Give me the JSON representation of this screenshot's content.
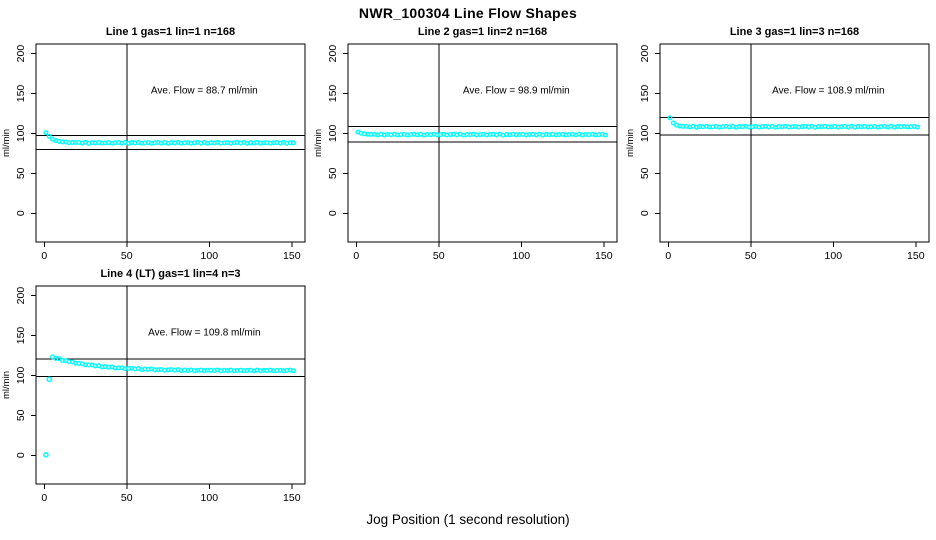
{
  "page_title": "NWR_100304  Line Flow Shapes",
  "xlabel": "Jog Position (1 second resolution)",
  "colors": {
    "points": "#00FFFF",
    "axis": "#000000",
    "background": "#FFFFFF"
  },
  "chart_data": {
    "type": "scatter",
    "title": "NWR_100304  Line Flow Shapes",
    "xlabel": "Jog Position (1 second resolution)",
    "ylabel": "ml/min",
    "grid": "off",
    "layout": "2 rows x 3 cols, positions 1-4 used",
    "shared_axes": {
      "xlim": [
        -5,
        158
      ],
      "ylim": [
        -36,
        212
      ],
      "xticks": [
        0,
        50,
        100,
        150
      ],
      "yticks": [
        0,
        50,
        100,
        150,
        200
      ],
      "vline_x": 50,
      "marker": "open-circle"
    },
    "annotation_pos": [
      97,
      150
    ],
    "plots": [
      {
        "title": "Line 1 gas=1 lin=1 n=168",
        "annotation": "Ave. Flow =  88.7  ml/min",
        "ave_flow_ml_min": 88.7,
        "ref_lines": [
          97.6,
          79.8
        ],
        "x_start": 1,
        "x_step": 2,
        "y": [
          100.8,
          96.3,
          92.7,
          90.9,
          90.1,
          89.2,
          89.3,
          88.3,
          88.6,
          88.6,
          88.6,
          87.9,
          88.8,
          87.6,
          88.4,
          88.1,
          88.7,
          87.8,
          88.2,
          88.5,
          87.7,
          88.3,
          88.6,
          87.9,
          88.8,
          87.6,
          88.4,
          88.1,
          88.7,
          87.8,
          88.2,
          88.5,
          87.7,
          88.3,
          88.6,
          87.9,
          88.8,
          87.6,
          88.4,
          88.1,
          88.7,
          87.8,
          88.2,
          88.5,
          87.7,
          88.3,
          88.6,
          87.9,
          88.8,
          87.6,
          88.4,
          88.1,
          88.7,
          87.8,
          88.2,
          88.5,
          87.7,
          88.3,
          88.6,
          87.9,
          88.8,
          87.6,
          88.4,
          88.1,
          88.7,
          87.8,
          88.2,
          88.5,
          87.7,
          88.3,
          88.6,
          87.9,
          88.8,
          87.6,
          88.4,
          88.1
        ]
      },
      {
        "title": "Line 2 gas=1 lin=2 n=168",
        "annotation": "Ave. Flow =  98.9  ml/min",
        "ave_flow_ml_min": 98.9,
        "ref_lines": [
          108.8,
          89.0
        ],
        "x_start": 1,
        "x_step": 2,
        "y": [
          101.6,
          100.2,
          99.5,
          98.9,
          98.8,
          98.9,
          98.2,
          99.1,
          97.9,
          98.7,
          98.4,
          99.0,
          98.1,
          98.5,
          98.8,
          98.0,
          98.6,
          98.9,
          98.2,
          99.1,
          97.9,
          98.7,
          98.4,
          99.0,
          98.1,
          98.5,
          98.8,
          98.0,
          98.6,
          98.9,
          98.2,
          99.1,
          97.9,
          98.7,
          98.4,
          99.0,
          98.1,
          98.5,
          98.8,
          98.0,
          98.6,
          98.9,
          98.2,
          99.1,
          97.9,
          98.7,
          98.4,
          99.0,
          98.1,
          98.5,
          98.8,
          98.0,
          98.6,
          98.9,
          98.2,
          99.1,
          97.9,
          98.7,
          98.4,
          99.0,
          98.1,
          98.5,
          98.8,
          98.0,
          98.6,
          98.9,
          98.2,
          99.1,
          97.9,
          98.7,
          98.4,
          99.0,
          98.1,
          98.5,
          98.8,
          98.0
        ]
      },
      {
        "title": "Line 3 gas=1 lin=3 n=168",
        "annotation": "Ave. Flow =  108.9  ml/min",
        "ave_flow_ml_min": 108.9,
        "ref_lines": [
          119.8,
          98.0
        ],
        "x_start": 1,
        "x_step": 2,
        "y": [
          119.5,
          113.1,
          110.4,
          109.2,
          108.8,
          108.8,
          108.1,
          109.0,
          107.8,
          108.6,
          108.3,
          108.9,
          108.0,
          108.4,
          108.7,
          107.9,
          108.5,
          108.8,
          108.1,
          109.0,
          107.8,
          108.6,
          108.3,
          108.9,
          108.0,
          108.4,
          108.7,
          107.9,
          108.5,
          108.8,
          108.1,
          109.0,
          107.8,
          108.6,
          108.3,
          108.9,
          108.0,
          108.4,
          108.7,
          107.9,
          108.5,
          108.8,
          108.1,
          109.0,
          107.8,
          108.6,
          108.3,
          108.9,
          108.0,
          108.4,
          108.7,
          107.9,
          108.5,
          108.8,
          108.1,
          109.0,
          107.8,
          108.6,
          108.3,
          108.9,
          108.0,
          108.4,
          108.7,
          107.9,
          108.5,
          108.8,
          108.1,
          109.0,
          107.8,
          108.6,
          108.3,
          108.9,
          108.0,
          108.4,
          108.7,
          107.9
        ]
      },
      {
        "title": "Line 4 (LT) gas=1 lin=4 n=3",
        "annotation": "Ave. Flow =  109.8  ml/min",
        "ave_flow_ml_min": 109.8,
        "ref_lines": [
          120.8,
          98.8
        ],
        "x_start": 5,
        "x_step": 2,
        "outliers": [
          [
            1,
            0.5
          ],
          [
            3,
            95.0
          ]
        ],
        "y": [
          123.2,
          121.2,
          121.0,
          118.7,
          118.5,
          117.3,
          117.0,
          115.3,
          115.0,
          114.6,
          113.2,
          113.2,
          113.0,
          111.8,
          112.2,
          110.6,
          111.0,
          110.3,
          110.6,
          109.3,
          109.5,
          109.5,
          108.4,
          108.8,
          108.9,
          108.0,
          108.7,
          107.3,
          108.0,
          107.5,
          108.0,
          107.0,
          107.2,
          107.4,
          106.5,
          107.0,
          107.3,
          106.5,
          107.3,
          106.0,
          106.6,
          106.2,
          106.8,
          105.9,
          106.3,
          106.6,
          105.8,
          106.4,
          106.5,
          106.0,
          106.8,
          105.8,
          106.4,
          106.1,
          106.7,
          105.9,
          106.2,
          106.5,
          105.8,
          106.3,
          106.5,
          105.9,
          106.7,
          105.8,
          106.3,
          106.1,
          106.6,
          105.9,
          106.2,
          106.4,
          105.8,
          106.3,
          106.6,
          105.9
        ]
      }
    ]
  }
}
